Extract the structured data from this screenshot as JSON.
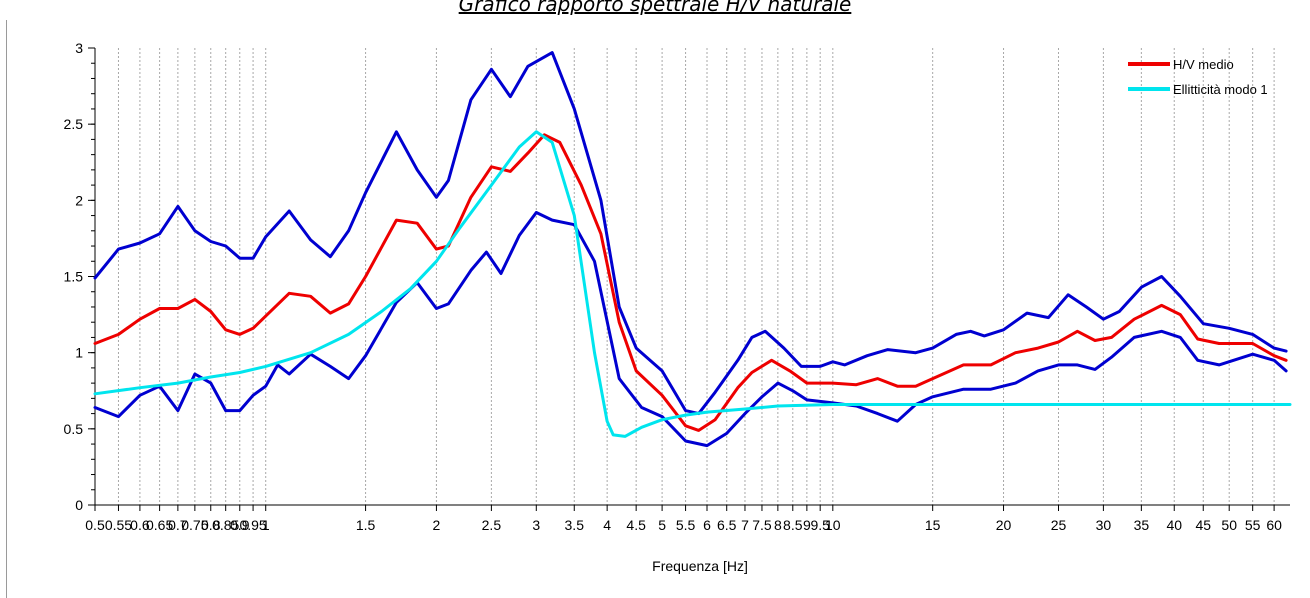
{
  "chart_data": {
    "type": "line",
    "title": "Grafico rapporto spettrale H/V naturale",
    "xlabel": "Frequenza [Hz]",
    "ylabel": "",
    "x_scale": "log",
    "xlim": [
      0.5,
      64
    ],
    "ylim": [
      0,
      3
    ],
    "grid": "vertical",
    "legend_position": "top-right",
    "x_tick_labels": [
      {
        "value": 0.5,
        "label": "0.5"
      },
      {
        "value": 0.55,
        "label": "0.55"
      },
      {
        "value": 0.6,
        "label": "0.6"
      },
      {
        "value": 0.65,
        "label": "0.65"
      },
      {
        "value": 0.7,
        "label": "0.7"
      },
      {
        "value": 0.75,
        "label": "0.75"
      },
      {
        "value": 0.8,
        "label": "0.8"
      },
      {
        "value": 0.85,
        "label": "0.85"
      },
      {
        "value": 0.9,
        "label": "0.9"
      },
      {
        "value": 0.95,
        "label": "0.95"
      },
      {
        "value": 1,
        "label": "1"
      },
      {
        "value": 1.5,
        "label": "1.5"
      },
      {
        "value": 2,
        "label": "2"
      },
      {
        "value": 2.5,
        "label": "2.5"
      },
      {
        "value": 3,
        "label": "3"
      },
      {
        "value": 3.5,
        "label": "3.5"
      },
      {
        "value": 4,
        "label": "4"
      },
      {
        "value": 4.5,
        "label": "4.5"
      },
      {
        "value": 5,
        "label": "5"
      },
      {
        "value": 5.5,
        "label": "5.5"
      },
      {
        "value": 6,
        "label": "6"
      },
      {
        "value": 6.5,
        "label": "6.5"
      },
      {
        "value": 7,
        "label": "7"
      },
      {
        "value": 7.5,
        "label": "7.5"
      },
      {
        "value": 8,
        "label": "8"
      },
      {
        "value": 8.5,
        "label": "8.5"
      },
      {
        "value": 9,
        "label": "9"
      },
      {
        "value": 9.5,
        "label": "9.5"
      },
      {
        "value": 10,
        "label": "10"
      },
      {
        "value": 15,
        "label": "15"
      },
      {
        "value": 20,
        "label": "20"
      },
      {
        "value": 25,
        "label": "25"
      },
      {
        "value": 30,
        "label": "30"
      },
      {
        "value": 35,
        "label": "35"
      },
      {
        "value": 40,
        "label": "40"
      },
      {
        "value": 45,
        "label": "45"
      },
      {
        "value": 50,
        "label": "50"
      },
      {
        "value": 55,
        "label": "55"
      },
      {
        "value": 60,
        "label": "60"
      }
    ],
    "y_tick_labels": [
      {
        "value": 0,
        "label": "0"
      },
      {
        "value": 0.5,
        "label": "0.5"
      },
      {
        "value": 1,
        "label": "1"
      },
      {
        "value": 1.5,
        "label": "1.5"
      },
      {
        "value": 2,
        "label": "2"
      },
      {
        "value": 2.5,
        "label": "2.5"
      },
      {
        "value": 3,
        "label": "3"
      }
    ],
    "series": [
      {
        "name": "",
        "color": "#0000d0",
        "in_legend": false,
        "points": [
          [
            0.5,
            1.49
          ],
          [
            0.55,
            1.68
          ],
          [
            0.6,
            1.72
          ],
          [
            0.65,
            1.78
          ],
          [
            0.7,
            1.96
          ],
          [
            0.75,
            1.8
          ],
          [
            0.8,
            1.73
          ],
          [
            0.85,
            1.7
          ],
          [
            0.9,
            1.62
          ],
          [
            0.95,
            1.62
          ],
          [
            1,
            1.76
          ],
          [
            1.1,
            1.93
          ],
          [
            1.2,
            1.74
          ],
          [
            1.3,
            1.63
          ],
          [
            1.4,
            1.8
          ],
          [
            1.5,
            2.05
          ],
          [
            1.7,
            2.45
          ],
          [
            1.85,
            2.2
          ],
          [
            2,
            2.02
          ],
          [
            2.1,
            2.13
          ],
          [
            2.3,
            2.66
          ],
          [
            2.5,
            2.86
          ],
          [
            2.7,
            2.68
          ],
          [
            2.9,
            2.88
          ],
          [
            3.2,
            2.97
          ],
          [
            3.5,
            2.6
          ],
          [
            3.9,
            2.0
          ],
          [
            4.2,
            1.3
          ],
          [
            4.5,
            1.03
          ],
          [
            5,
            0.88
          ],
          [
            5.5,
            0.62
          ],
          [
            5.8,
            0.6
          ],
          [
            6.2,
            0.74
          ],
          [
            6.8,
            0.95
          ],
          [
            7.2,
            1.1
          ],
          [
            7.6,
            1.14
          ],
          [
            8.2,
            1.03
          ],
          [
            8.8,
            0.91
          ],
          [
            9.5,
            0.91
          ],
          [
            10,
            0.94
          ],
          [
            10.5,
            0.92
          ],
          [
            11.5,
            0.98
          ],
          [
            12.5,
            1.02
          ],
          [
            14,
            1.0
          ],
          [
            15,
            1.03
          ],
          [
            16.5,
            1.12
          ],
          [
            17.5,
            1.14
          ],
          [
            18.5,
            1.11
          ],
          [
            20,
            1.15
          ],
          [
            22,
            1.26
          ],
          [
            24,
            1.23
          ],
          [
            26,
            1.38
          ],
          [
            28,
            1.3
          ],
          [
            30,
            1.22
          ],
          [
            32,
            1.27
          ],
          [
            35,
            1.43
          ],
          [
            38,
            1.5
          ],
          [
            41,
            1.37
          ],
          [
            45,
            1.19
          ],
          [
            50,
            1.16
          ],
          [
            55,
            1.12
          ],
          [
            60,
            1.03
          ],
          [
            63,
            1.01
          ]
        ]
      },
      {
        "name": "H/V medio",
        "color": "#ee0000",
        "in_legend": true,
        "points": [
          [
            0.5,
            1.06
          ],
          [
            0.55,
            1.12
          ],
          [
            0.6,
            1.22
          ],
          [
            0.65,
            1.29
          ],
          [
            0.7,
            1.29
          ],
          [
            0.75,
            1.35
          ],
          [
            0.8,
            1.27
          ],
          [
            0.85,
            1.15
          ],
          [
            0.9,
            1.12
          ],
          [
            0.95,
            1.16
          ],
          [
            1,
            1.24
          ],
          [
            1.1,
            1.39
          ],
          [
            1.2,
            1.37
          ],
          [
            1.3,
            1.26
          ],
          [
            1.4,
            1.32
          ],
          [
            1.5,
            1.5
          ],
          [
            1.7,
            1.87
          ],
          [
            1.85,
            1.85
          ],
          [
            2,
            1.68
          ],
          [
            2.1,
            1.7
          ],
          [
            2.3,
            2.02
          ],
          [
            2.5,
            2.22
          ],
          [
            2.7,
            2.19
          ],
          [
            2.9,
            2.31
          ],
          [
            3.1,
            2.43
          ],
          [
            3.3,
            2.38
          ],
          [
            3.6,
            2.1
          ],
          [
            3.9,
            1.78
          ],
          [
            4.2,
            1.2
          ],
          [
            4.5,
            0.88
          ],
          [
            5,
            0.72
          ],
          [
            5.5,
            0.52
          ],
          [
            5.8,
            0.49
          ],
          [
            6.2,
            0.56
          ],
          [
            6.8,
            0.77
          ],
          [
            7.2,
            0.87
          ],
          [
            7.8,
            0.95
          ],
          [
            8.4,
            0.88
          ],
          [
            9,
            0.8
          ],
          [
            10,
            0.8
          ],
          [
            11,
            0.79
          ],
          [
            12,
            0.83
          ],
          [
            13,
            0.78
          ],
          [
            14,
            0.78
          ],
          [
            15,
            0.83
          ],
          [
            17,
            0.92
          ],
          [
            19,
            0.92
          ],
          [
            21,
            1.0
          ],
          [
            23,
            1.03
          ],
          [
            25,
            1.07
          ],
          [
            27,
            1.14
          ],
          [
            29,
            1.08
          ],
          [
            31,
            1.1
          ],
          [
            34,
            1.22
          ],
          [
            38,
            1.31
          ],
          [
            41,
            1.25
          ],
          [
            44,
            1.09
          ],
          [
            48,
            1.06
          ],
          [
            55,
            1.06
          ],
          [
            60,
            0.98
          ],
          [
            63,
            0.95
          ]
        ]
      },
      {
        "name": "",
        "color": "#0000d0",
        "in_legend": false,
        "points": [
          [
            0.5,
            0.64
          ],
          [
            0.55,
            0.58
          ],
          [
            0.6,
            0.72
          ],
          [
            0.65,
            0.78
          ],
          [
            0.7,
            0.62
          ],
          [
            0.75,
            0.86
          ],
          [
            0.8,
            0.8
          ],
          [
            0.85,
            0.62
          ],
          [
            0.9,
            0.62
          ],
          [
            0.95,
            0.72
          ],
          [
            1,
            0.78
          ],
          [
            1.05,
            0.92
          ],
          [
            1.1,
            0.86
          ],
          [
            1.2,
            0.99
          ],
          [
            1.3,
            0.91
          ],
          [
            1.4,
            0.83
          ],
          [
            1.5,
            0.98
          ],
          [
            1.7,
            1.33
          ],
          [
            1.85,
            1.46
          ],
          [
            2,
            1.29
          ],
          [
            2.1,
            1.32
          ],
          [
            2.3,
            1.54
          ],
          [
            2.45,
            1.66
          ],
          [
            2.6,
            1.52
          ],
          [
            2.8,
            1.77
          ],
          [
            3,
            1.92
          ],
          [
            3.2,
            1.87
          ],
          [
            3.5,
            1.84
          ],
          [
            3.8,
            1.6
          ],
          [
            4.2,
            0.83
          ],
          [
            4.6,
            0.64
          ],
          [
            5,
            0.58
          ],
          [
            5.5,
            0.42
          ],
          [
            6,
            0.39
          ],
          [
            6.5,
            0.47
          ],
          [
            7,
            0.6
          ],
          [
            7.5,
            0.71
          ],
          [
            8,
            0.8
          ],
          [
            8.5,
            0.75
          ],
          [
            9,
            0.69
          ],
          [
            10,
            0.67
          ],
          [
            11,
            0.65
          ],
          [
            12,
            0.6
          ],
          [
            13,
            0.55
          ],
          [
            14,
            0.66
          ],
          [
            15,
            0.71
          ],
          [
            17,
            0.76
          ],
          [
            19,
            0.76
          ],
          [
            21,
            0.8
          ],
          [
            23,
            0.88
          ],
          [
            25,
            0.92
          ],
          [
            27,
            0.92
          ],
          [
            29,
            0.89
          ],
          [
            31,
            0.97
          ],
          [
            34,
            1.1
          ],
          [
            38,
            1.14
          ],
          [
            41,
            1.1
          ],
          [
            44,
            0.95
          ],
          [
            48,
            0.92
          ],
          [
            55,
            0.99
          ],
          [
            60,
            0.95
          ],
          [
            63,
            0.88
          ]
        ]
      },
      {
        "name": "Ellitticità modo 1",
        "color": "#00e5ee",
        "in_legend": true,
        "points": [
          [
            0.5,
            0.73
          ],
          [
            0.6,
            0.77
          ],
          [
            0.7,
            0.8
          ],
          [
            0.8,
            0.84
          ],
          [
            0.9,
            0.87
          ],
          [
            1,
            0.91
          ],
          [
            1.2,
            1.0
          ],
          [
            1.4,
            1.12
          ],
          [
            1.6,
            1.27
          ],
          [
            1.8,
            1.42
          ],
          [
            2,
            1.6
          ],
          [
            2.2,
            1.82
          ],
          [
            2.5,
            2.1
          ],
          [
            2.8,
            2.35
          ],
          [
            3,
            2.45
          ],
          [
            3.2,
            2.38
          ],
          [
            3.5,
            1.9
          ],
          [
            3.8,
            1.0
          ],
          [
            4,
            0.55
          ],
          [
            4.1,
            0.46
          ],
          [
            4.3,
            0.45
          ],
          [
            4.6,
            0.51
          ],
          [
            5,
            0.56
          ],
          [
            5.5,
            0.59
          ],
          [
            6,
            0.61
          ],
          [
            7,
            0.63
          ],
          [
            8,
            0.65
          ],
          [
            10,
            0.66
          ],
          [
            15,
            0.66
          ],
          [
            20,
            0.66
          ],
          [
            30,
            0.66
          ],
          [
            40,
            0.66
          ],
          [
            50,
            0.66
          ],
          [
            64,
            0.66
          ]
        ]
      }
    ]
  }
}
